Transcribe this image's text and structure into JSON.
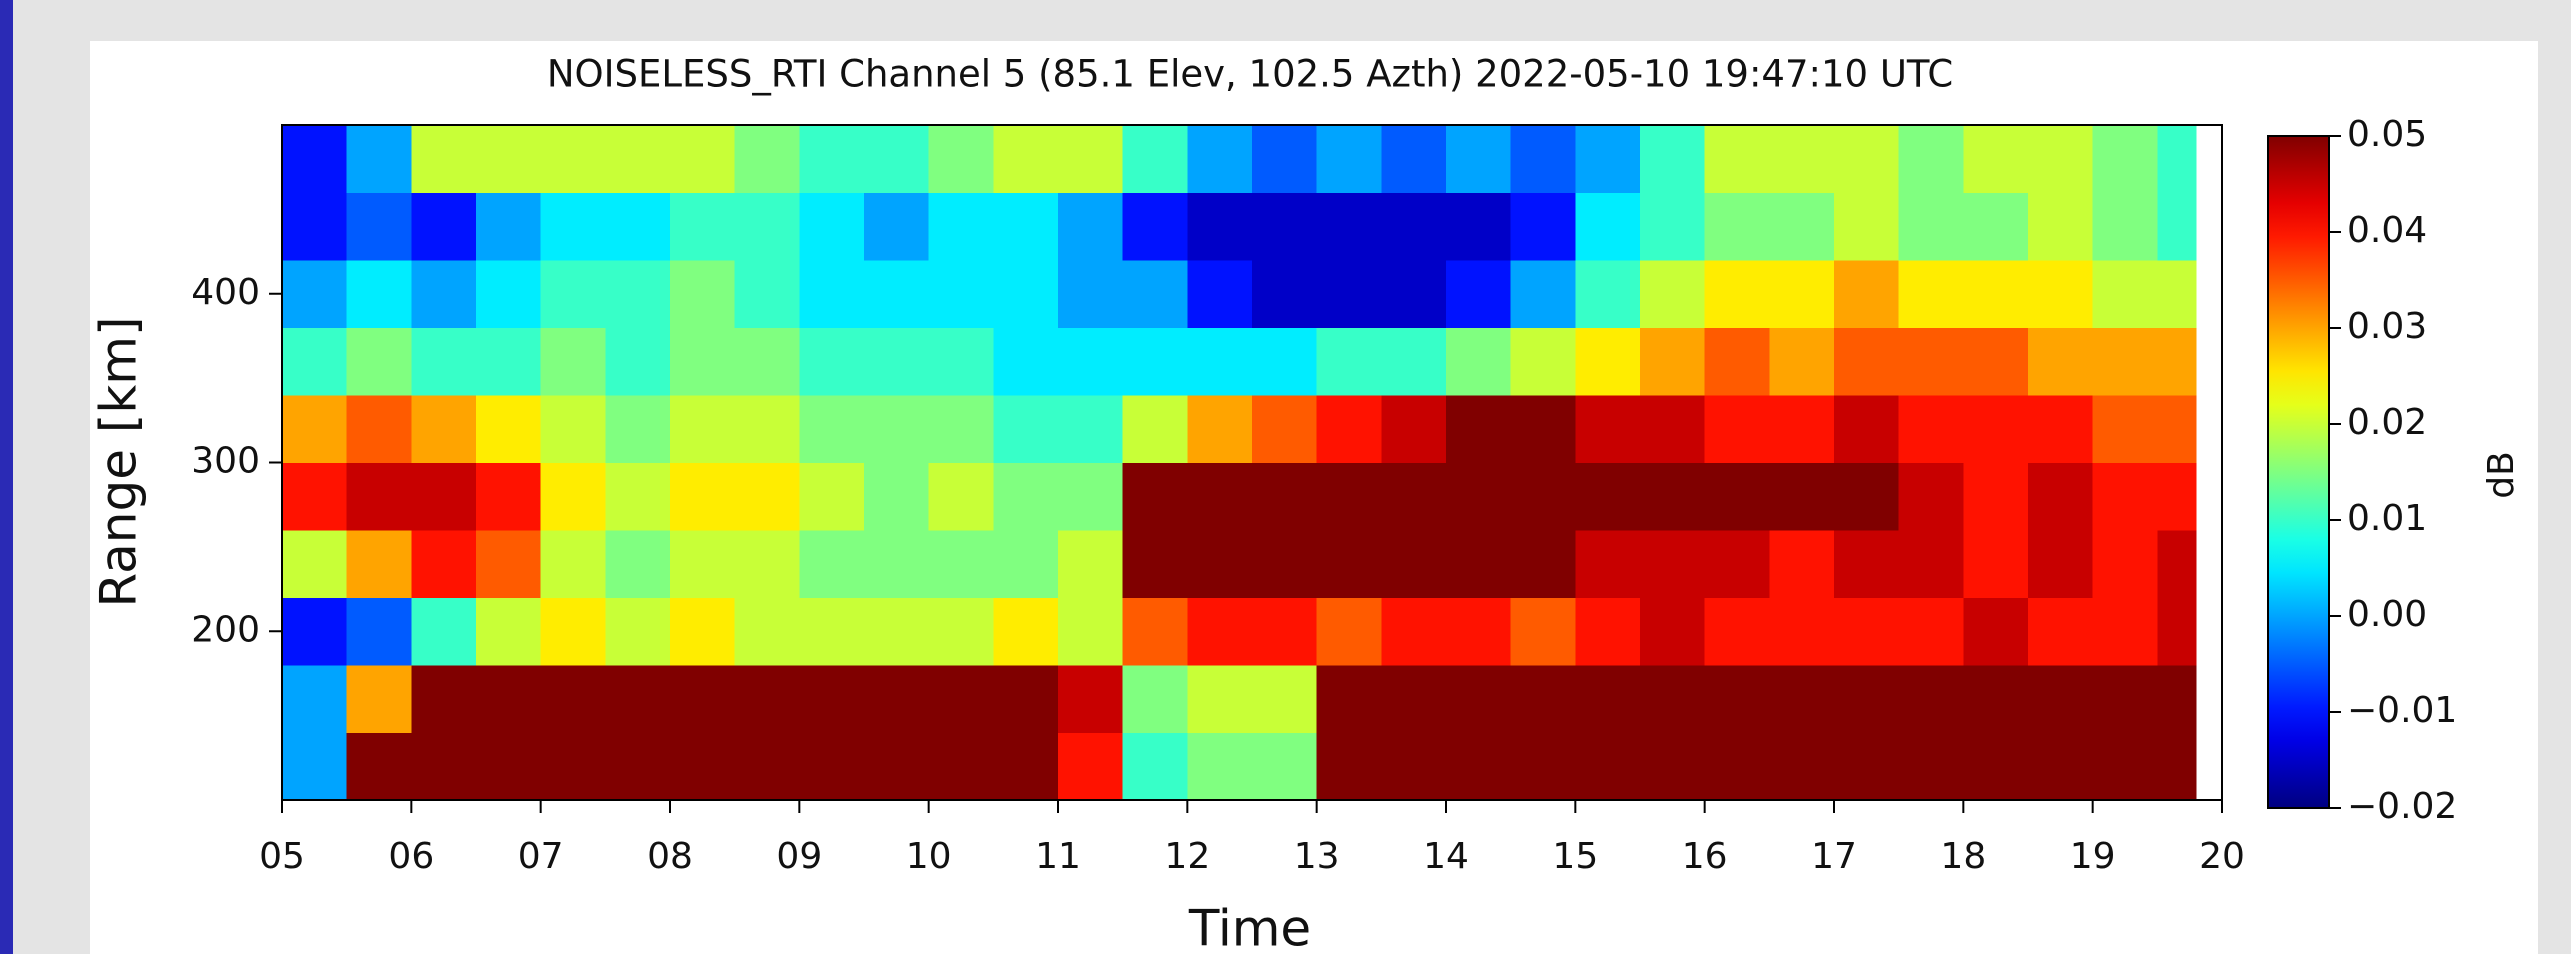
{
  "chart_data": {
    "type": "heatmap",
    "title": "NOISELESS_RTI Channel 5 (85.1 Elev,  102.5 Azth) 2022-05-10 19:47:10 UTC",
    "x_label": "Time",
    "y_label": "Range [km]",
    "colorbar_label": "dB",
    "colormap": "jet",
    "x_edges": [
      5,
      5.5,
      6,
      6.5,
      7,
      7.5,
      8,
      8.5,
      9,
      9.5,
      10,
      10.5,
      11,
      11.5,
      12,
      12.5,
      13,
      13.5,
      14,
      14.5,
      15,
      15.5,
      16,
      16.5,
      17,
      17.5,
      18,
      18.5,
      19,
      19.5,
      19.8
    ],
    "y_edges": [
      100,
      140,
      180,
      220,
      260,
      300,
      340,
      380,
      420,
      460,
      500
    ],
    "z": [
      [
        0.0,
        0.05,
        0.05,
        0.05,
        0.05,
        0.05,
        0.05,
        0.05,
        0.05,
        0.05,
        0.05,
        0.05,
        0.04,
        0.01,
        0.015,
        0.015,
        0.05,
        0.05,
        0.05,
        0.05,
        0.05,
        0.05,
        0.05,
        0.05,
        0.05,
        0.05,
        0.05,
        0.05,
        0.05,
        0.05
      ],
      [
        0.0,
        0.03,
        0.05,
        0.05,
        0.05,
        0.05,
        0.05,
        0.05,
        0.05,
        0.05,
        0.05,
        0.05,
        0.045,
        0.015,
        0.02,
        0.02,
        0.05,
        0.05,
        0.05,
        0.05,
        0.05,
        0.05,
        0.05,
        0.05,
        0.05,
        0.05,
        0.05,
        0.05,
        0.05,
        0.05
      ],
      [
        -0.01,
        -0.005,
        0.01,
        0.02,
        0.025,
        0.02,
        0.025,
        0.02,
        0.02,
        0.02,
        0.02,
        0.025,
        0.02,
        0.035,
        0.04,
        0.04,
        0.035,
        0.04,
        0.04,
        0.035,
        0.04,
        0.045,
        0.04,
        0.04,
        0.04,
        0.04,
        0.045,
        0.04,
        0.04,
        0.045
      ],
      [
        0.02,
        0.03,
        0.04,
        0.035,
        0.02,
        0.015,
        0.02,
        0.02,
        0.015,
        0.015,
        0.015,
        0.015,
        0.02,
        0.05,
        0.05,
        0.05,
        0.05,
        0.05,
        0.05,
        0.05,
        0.045,
        0.045,
        0.045,
        0.04,
        0.045,
        0.045,
        0.04,
        0.045,
        0.04,
        0.045
      ],
      [
        0.04,
        0.045,
        0.045,
        0.04,
        0.025,
        0.02,
        0.025,
        0.025,
        0.02,
        0.015,
        0.02,
        0.015,
        0.015,
        0.05,
        0.05,
        0.05,
        0.05,
        0.05,
        0.05,
        0.05,
        0.05,
        0.05,
        0.05,
        0.05,
        0.05,
        0.045,
        0.04,
        0.045,
        0.04,
        0.04
      ],
      [
        0.03,
        0.035,
        0.03,
        0.025,
        0.02,
        0.015,
        0.02,
        0.02,
        0.015,
        0.015,
        0.015,
        0.01,
        0.01,
        0.02,
        0.03,
        0.035,
        0.04,
        0.045,
        0.05,
        0.05,
        0.045,
        0.045,
        0.04,
        0.04,
        0.045,
        0.04,
        0.04,
        0.04,
        0.035,
        0.035
      ],
      [
        0.01,
        0.015,
        0.01,
        0.01,
        0.015,
        0.01,
        0.015,
        0.015,
        0.01,
        0.01,
        0.01,
        0.005,
        0.005,
        0.005,
        0.005,
        0.005,
        0.01,
        0.01,
        0.015,
        0.02,
        0.025,
        0.03,
        0.035,
        0.03,
        0.035,
        0.035,
        0.035,
        0.03,
        0.03,
        0.03
      ],
      [
        0.0,
        0.005,
        0.0,
        0.005,
        0.01,
        0.01,
        0.015,
        0.01,
        0.005,
        0.005,
        0.005,
        0.005,
        0.0,
        0.0,
        -0.01,
        -0.015,
        -0.015,
        -0.015,
        -0.01,
        0.0,
        0.01,
        0.02,
        0.025,
        0.025,
        0.03,
        0.025,
        0.025,
        0.025,
        0.02,
        0.02
      ],
      [
        -0.01,
        -0.005,
        -0.01,
        0.0,
        0.005,
        0.005,
        0.01,
        0.01,
        0.005,
        0.0,
        0.005,
        0.005,
        0.0,
        -0.01,
        -0.015,
        -0.015,
        -0.015,
        -0.015,
        -0.015,
        -0.01,
        0.005,
        0.01,
        0.015,
        0.015,
        0.02,
        0.015,
        0.015,
        0.02,
        0.015,
        0.01
      ],
      [
        -0.01,
        0.0,
        0.02,
        0.02,
        0.02,
        0.02,
        0.02,
        0.015,
        0.01,
        0.01,
        0.015,
        0.02,
        0.02,
        0.01,
        0.0,
        -0.005,
        0.0,
        -0.005,
        0.0,
        -0.005,
        0.0,
        0.01,
        0.02,
        0.02,
        0.02,
        0.015,
        0.02,
        0.02,
        0.015,
        0.01
      ]
    ],
    "xlim": [
      5,
      20
    ],
    "xticks": [
      {
        "value": 5,
        "label": "05"
      },
      {
        "value": 6,
        "label": "06"
      },
      {
        "value": 7,
        "label": "07"
      },
      {
        "value": 8,
        "label": "08"
      },
      {
        "value": 9,
        "label": "09"
      },
      10,
      11,
      12,
      13,
      14,
      15,
      16,
      17,
      18,
      19,
      20
    ],
    "ylim": [
      100,
      500
    ],
    "yticks": [
      200,
      300,
      400
    ],
    "clim": [
      -0.02,
      0.05
    ],
    "cticks": [
      0.05,
      0.04,
      0.03,
      0.02,
      0.01,
      {
        "value": 0,
        "label": "0.00"
      },
      {
        "value": -0.01,
        "label": "−0.01"
      },
      {
        "value": -0.02,
        "label": "−0.02"
      }
    ]
  }
}
